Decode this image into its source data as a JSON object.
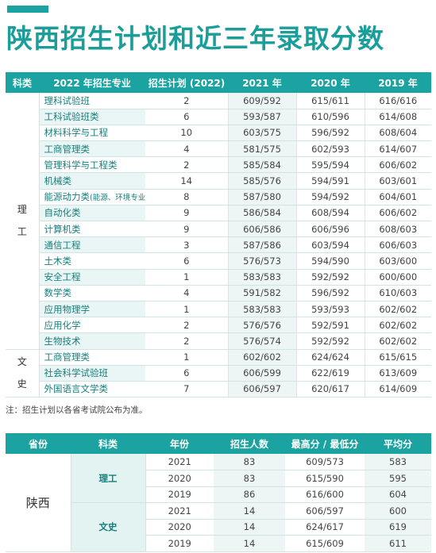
{
  "title": "陕西招生计划和近三年录取分数",
  "table1": {
    "headers": [
      "科类",
      "2022 年招生专业",
      "招生计划 (2022)",
      "2021 年",
      "2020 年",
      "2019 年"
    ],
    "groups": [
      {
        "category_chars": [
          "理",
          "工"
        ],
        "rows": [
          {
            "major": "理科试验班",
            "plan": "2",
            "y2021": "609/592",
            "y2020": "615/611",
            "y2019": "616/616"
          },
          {
            "major": "工科试验班类",
            "plan": "6",
            "y2021": "593/587",
            "y2020": "610/596",
            "y2019": "614/608"
          },
          {
            "major": "材料科学与工程",
            "plan": "10",
            "y2021": "603/575",
            "y2020": "596/592",
            "y2019": "608/604"
          },
          {
            "major": "工商管理类",
            "plan": "4",
            "y2021": "581/575",
            "y2020": "602/593",
            "y2019": "614/607"
          },
          {
            "major": "管理科学与工程类",
            "plan": "2",
            "y2021": "585/584",
            "y2020": "595/594",
            "y2019": "606/602"
          },
          {
            "major": "机械类",
            "plan": "14",
            "y2021": "585/576",
            "y2020": "594/591",
            "y2019": "603/601"
          },
          {
            "major": "能源动力类",
            "note": "(能源、环境专业)",
            "plan": "8",
            "y2021": "587/580",
            "y2020": "594/592",
            "y2019": "604/601"
          },
          {
            "major": "自动化类",
            "plan": "9",
            "y2021": "586/584",
            "y2020": "608/594",
            "y2019": "606/602"
          },
          {
            "major": "计算机类",
            "plan": "9",
            "y2021": "606/586",
            "y2020": "606/596",
            "y2019": "608/603"
          },
          {
            "major": "通信工程",
            "plan": "3",
            "y2021": "587/586",
            "y2020": "603/594",
            "y2019": "606/603"
          },
          {
            "major": "土木类",
            "plan": "6",
            "y2021": "576/573",
            "y2020": "594/590",
            "y2019": "603/600"
          },
          {
            "major": "安全工程",
            "plan": "1",
            "y2021": "583/583",
            "y2020": "592/592",
            "y2019": "600/600"
          },
          {
            "major": "数学类",
            "plan": "4",
            "y2021": "591/582",
            "y2020": "596/592",
            "y2019": "610/603"
          },
          {
            "major": "应用物理学",
            "plan": "1",
            "y2021": "583/583",
            "y2020": "593/593",
            "y2019": "602/602"
          },
          {
            "major": "应用化学",
            "plan": "2",
            "y2021": "576/576",
            "y2020": "592/591",
            "y2019": "602/602"
          },
          {
            "major": "生物技术",
            "plan": "2",
            "y2021": "576/574",
            "y2020": "592/592",
            "y2019": "602/602"
          }
        ]
      },
      {
        "category_chars": [
          "文",
          "史"
        ],
        "rows": [
          {
            "major": "工商管理类",
            "plan": "1",
            "y2021": "602/602",
            "y2020": "624/624",
            "y2019": "615/615"
          },
          {
            "major": "社会科学试验班",
            "plan": "6",
            "y2021": "606/599",
            "y2020": "622/619",
            "y2019": "613/609"
          },
          {
            "major": "外国语言文学类",
            "plan": "7",
            "y2021": "606/597",
            "y2020": "620/617",
            "y2019": "614/609"
          }
        ]
      }
    ]
  },
  "note": "注：招生计划以各省考试院公布为准。",
  "table2": {
    "headers": [
      "省份",
      "科类",
      "年份",
      "招生人数",
      "最高分 / 最低分",
      "平均分"
    ],
    "province": "陕西",
    "subjects": [
      {
        "name": "理工",
        "rows": [
          {
            "year": "2021",
            "count": "83",
            "range": "609/573",
            "avg": "583"
          },
          {
            "year": "2020",
            "count": "83",
            "range": "615/590",
            "avg": "595"
          },
          {
            "year": "2019",
            "count": "86",
            "range": "616/600",
            "avg": "604"
          }
        ]
      },
      {
        "name": "文史",
        "rows": [
          {
            "year": "2021",
            "count": "14",
            "range": "606/597",
            "avg": "600"
          },
          {
            "year": "2020",
            "count": "14",
            "range": "624/617",
            "avg": "619"
          },
          {
            "year": "2019",
            "count": "14",
            "range": "615/609",
            "avg": "611"
          }
        ]
      }
    ]
  },
  "colors": {
    "accent": "#1aa3a0",
    "title": "#1b9e9a",
    "major_text": "#147f7c"
  }
}
